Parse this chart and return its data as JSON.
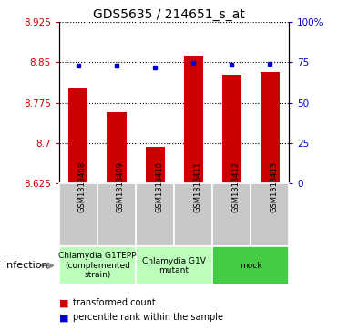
{
  "title": "GDS5635 / 214651_s_at",
  "samples": [
    "GSM1313408",
    "GSM1313409",
    "GSM1313410",
    "GSM1313411",
    "GSM1313412",
    "GSM1313413"
  ],
  "bar_values": [
    8.802,
    8.757,
    8.693,
    8.862,
    8.826,
    8.832
  ],
  "bar_bottom": 8.625,
  "dot_values": [
    73.0,
    73.0,
    71.5,
    74.5,
    73.5,
    74.0
  ],
  "ylim": [
    8.625,
    8.925
  ],
  "ylim_right": [
    0,
    100
  ],
  "yticks_left": [
    8.625,
    8.7,
    8.775,
    8.85,
    8.925
  ],
  "yticks_right": [
    0,
    25,
    50,
    75,
    100
  ],
  "ytick_labels_right": [
    "0",
    "25",
    "50",
    "75",
    "100%"
  ],
  "bar_color": "#CC0000",
  "dot_color": "#0000CC",
  "groups": [
    {
      "label": "Chlamydia G1TEPP\n(complemented\nstrain)",
      "color": "#bbffbb",
      "start": 0,
      "end": 2
    },
    {
      "label": "Chlamydia G1V\nmutant",
      "color": "#bbffbb",
      "start": 2,
      "end": 4
    },
    {
      "label": "mock",
      "color": "#44cc44",
      "start": 4,
      "end": 6
    }
  ],
  "factor_label": "infection",
  "title_fontsize": 10,
  "tick_fontsize": 7.5,
  "bar_width": 0.5,
  "sample_fontsize": 6,
  "group_fontsize": 6.5,
  "legend_fontsize": 7
}
